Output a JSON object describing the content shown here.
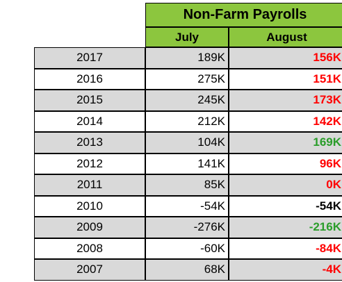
{
  "title": "Non-Farm Payrolls",
  "columns": {
    "july": "July",
    "august": "August"
  },
  "colors": {
    "header_bg": "#8cc63e",
    "shade_bg": "#d9d9d9",
    "decline_red": "#ff0000",
    "improve_green": "#2a9d2a",
    "neutral_black": "#000000"
  },
  "rows": [
    {
      "year": "2017",
      "july": "189K",
      "august": "156K",
      "august_color": "#ff0000"
    },
    {
      "year": "2016",
      "july": "275K",
      "august": "151K",
      "august_color": "#ff0000"
    },
    {
      "year": "2015",
      "july": "245K",
      "august": "173K",
      "august_color": "#ff0000"
    },
    {
      "year": "2014",
      "july": "212K",
      "august": "142K",
      "august_color": "#ff0000"
    },
    {
      "year": "2013",
      "july": "104K",
      "august": "169K",
      "august_color": "#2a9d2a"
    },
    {
      "year": "2012",
      "july": "141K",
      "august": "96K",
      "august_color": "#ff0000"
    },
    {
      "year": "2011",
      "july": "85K",
      "august": "0K",
      "august_color": "#ff0000"
    },
    {
      "year": "2010",
      "july": "-54K",
      "august": "-54K",
      "august_color": "#000000"
    },
    {
      "year": "2009",
      "july": "-276K",
      "august": "-216K",
      "august_color": "#2a9d2a"
    },
    {
      "year": "2008",
      "july": "-60K",
      "august": "-84K",
      "august_color": "#ff0000"
    },
    {
      "year": "2007",
      "july": "68K",
      "august": "-4K",
      "august_color": "#ff0000"
    }
  ]
}
